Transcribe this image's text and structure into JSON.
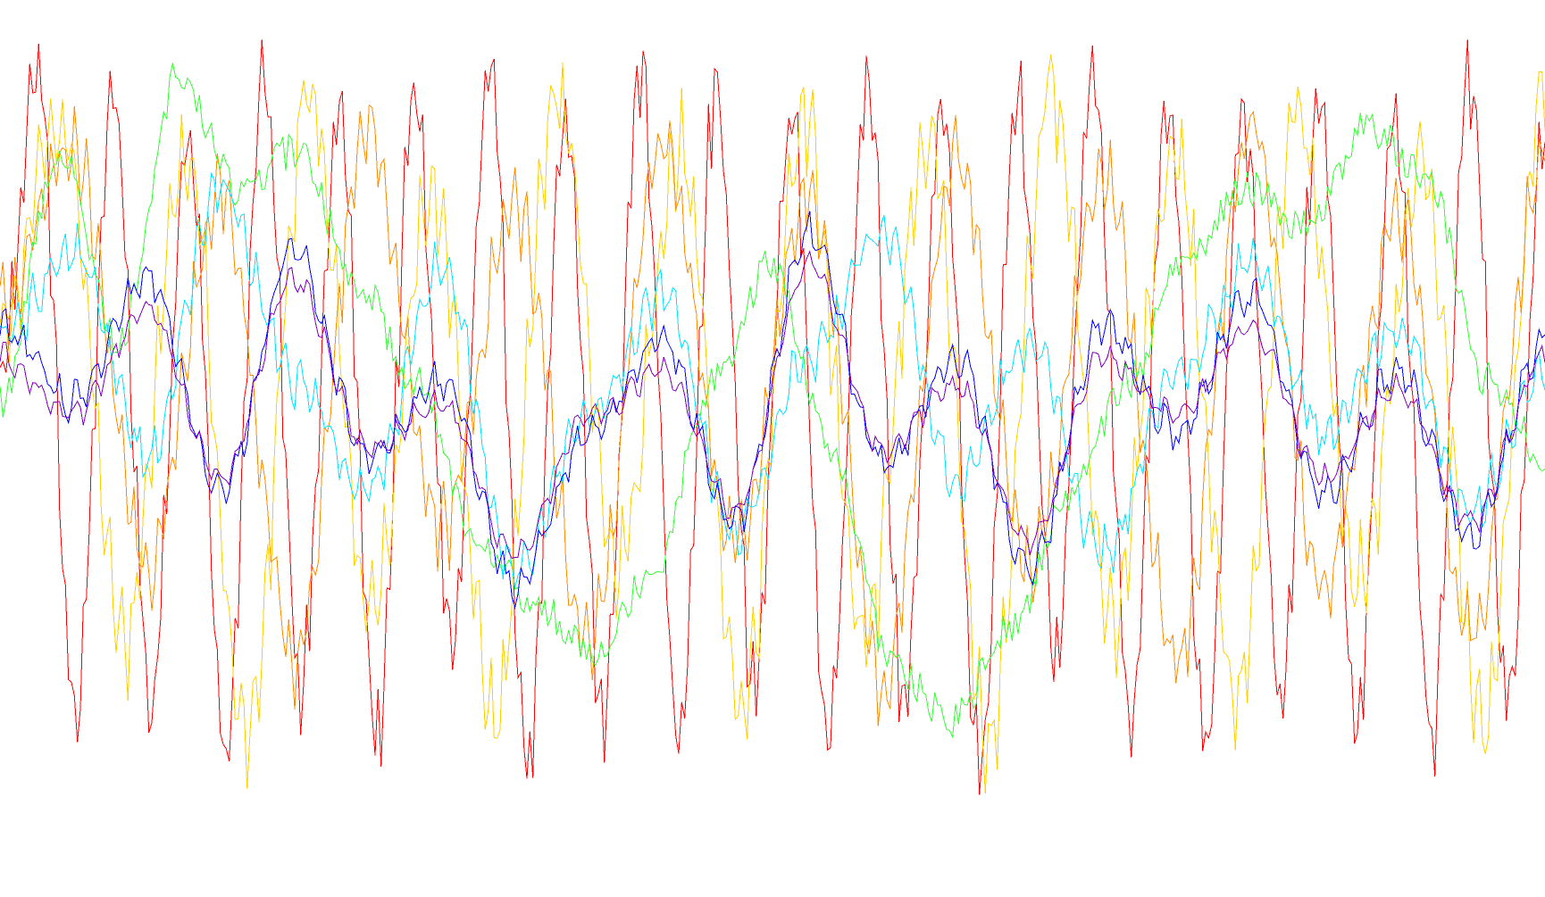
{
  "chart_data": {
    "type": "line",
    "title": "",
    "xlabel": "",
    "ylabel": "",
    "axes_visible": false,
    "grid": false,
    "legend": "none",
    "background": "#ffffff",
    "x": {
      "start": 0,
      "step": 1,
      "count": 520
    },
    "ylim": [
      0,
      1
    ],
    "series": [
      {
        "color": "#ff0000",
        "anchors": [
          0.55,
          0.96,
          0.1,
          0.93,
          0.12,
          0.88,
          0.06,
          0.95,
          0.15,
          0.9,
          0.08,
          0.92,
          0.2,
          0.94,
          0.05,
          0.88,
          0.1,
          0.96,
          0.08,
          0.93,
          0.14,
          0.9,
          0.07,
          0.95,
          0.12,
          0.91,
          0.04,
          0.93,
          0.18,
          0.96,
          0.09,
          0.92,
          0.06,
          0.89,
          0.13,
          0.94,
          0.1,
          0.91,
          0.08,
          0.95,
          0.12,
          0.88
        ],
        "noise": 0.07,
        "period": 3.0
      },
      {
        "color": "#ffd000",
        "anchors": [
          0.6,
          0.9,
          0.2,
          0.85,
          0.08,
          0.93,
          0.25,
          0.8,
          0.1,
          0.92,
          0.3,
          0.85,
          0.12,
          0.9,
          0.2,
          0.88,
          0.07,
          0.94,
          0.22,
          0.86,
          0.14,
          0.9,
          0.28,
          0.82,
          0.1,
          0.92
        ],
        "noise": 0.08,
        "period": 4.0
      },
      {
        "color": "#ff8c00",
        "anchors": [
          0.65,
          0.85,
          0.3,
          0.8,
          0.18,
          0.88,
          0.35,
          0.78,
          0.2,
          0.86,
          0.32,
          0.8,
          0.15,
          0.84,
          0.3,
          0.82,
          0.18,
          0.88,
          0.28,
          0.76,
          0.22,
          0.85
        ],
        "noise": 0.06,
        "period": 4.0
      },
      {
        "color": "#33ff33",
        "anchors": [
          0.52,
          0.85,
          0.6,
          0.95,
          0.8,
          0.85,
          0.68,
          0.55,
          0.35,
          0.25,
          0.2,
          0.3,
          0.55,
          0.7,
          0.45,
          0.18,
          0.1,
          0.22,
          0.4,
          0.55,
          0.72,
          0.8,
          0.75,
          0.88,
          0.82,
          0.55,
          0.45
        ],
        "noise": 0.05,
        "period": 2.0
      },
      {
        "color": "#00e5ff",
        "anchors": [
          0.6,
          0.72,
          0.45,
          0.8,
          0.55,
          0.4,
          0.7,
          0.3,
          0.5,
          0.66,
          0.35,
          0.58,
          0.74,
          0.42,
          0.6,
          0.32,
          0.55,
          0.7,
          0.48,
          0.62,
          0.38,
          0.56
        ],
        "noise": 0.04,
        "period": 5.0
      },
      {
        "color": "#0000ff",
        "anchors": [
          0.62,
          0.52,
          0.68,
          0.4,
          0.72,
          0.45,
          0.55,
          0.28,
          0.48,
          0.6,
          0.36,
          0.74,
          0.44,
          0.58,
          0.3,
          0.62,
          0.48,
          0.66,
          0.4,
          0.56,
          0.34,
          0.6
        ],
        "noise": 0.03,
        "period": 6.0
      },
      {
        "color": "#8000c0",
        "anchors": [
          0.58,
          0.5,
          0.64,
          0.42,
          0.68,
          0.46,
          0.52,
          0.32,
          0.5,
          0.56,
          0.38,
          0.7,
          0.46,
          0.54,
          0.34,
          0.58,
          0.5,
          0.62,
          0.42,
          0.54,
          0.36,
          0.58
        ],
        "noise": 0.02,
        "period": 6.0
      }
    ]
  }
}
